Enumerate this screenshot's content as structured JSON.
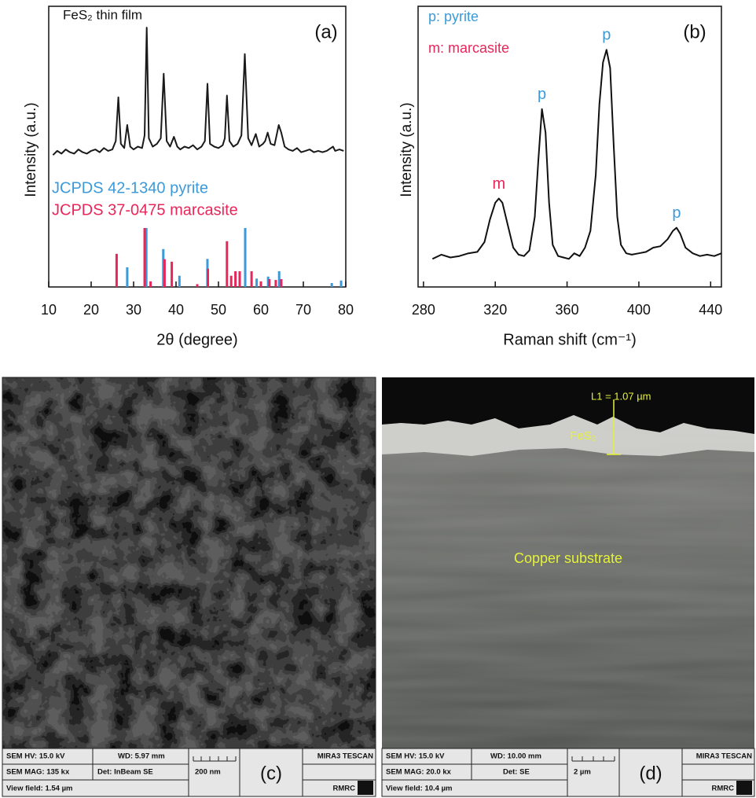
{
  "chart_data": [
    {
      "type": "line",
      "panel_label": "(a)",
      "annotation": "FeS₂ thin film",
      "x_label": "2θ (degree)",
      "y_label": "Intensity (a.u.)",
      "xlim": [
        10,
        80
      ],
      "ylim": [
        0,
        100
      ],
      "xticks": [
        10,
        20,
        30,
        40,
        50,
        60,
        70,
        80
      ],
      "series": [
        {
          "type": "line",
          "color": "#1a1a1a",
          "x": [
            11,
            12,
            13,
            14,
            15,
            16,
            17,
            18,
            19,
            20,
            21,
            22,
            23,
            24,
            25,
            25.8,
            26.4,
            27,
            27.8,
            28.5,
            29.2,
            30,
            31,
            32,
            32.6,
            33.1,
            33.6,
            34.5,
            35.5,
            36.4,
            37.1,
            37.8,
            38.6,
            39.5,
            40.3,
            41,
            42,
            43,
            44,
            45,
            46,
            46.8,
            47.4,
            48,
            49,
            50,
            51,
            51.5,
            52,
            52.6,
            53.5,
            54.5,
            55.4,
            56.2,
            57,
            57.8,
            58.8,
            59.6,
            60.5,
            61,
            61.6,
            62.3,
            63.2,
            64.2,
            64.8,
            65.6,
            66.5,
            67.5,
            68.5,
            69.5,
            70.5,
            71.5,
            72.5,
            73.5,
            74.5,
            75.5,
            76.5,
            77,
            77.5,
            78.5,
            79.5
          ],
          "values": [
            47,
            48.5,
            47.5,
            49,
            48,
            47.5,
            49,
            48,
            47.5,
            48.5,
            49,
            48,
            49.5,
            48.5,
            49,
            52,
            67.6,
            51,
            49.5,
            57.7,
            50,
            49,
            50,
            49.5,
            54,
            92.4,
            53,
            50,
            51,
            53,
            76,
            52,
            50,
            53.5,
            50,
            49,
            50,
            49.5,
            50.5,
            49,
            50,
            52,
            72.4,
            51,
            50,
            49.5,
            50.5,
            53,
            68.2,
            52,
            50,
            51,
            54,
            83,
            53,
            50.5,
            54.5,
            50,
            51,
            52,
            55,
            51,
            50.5,
            57.7,
            55,
            50,
            49,
            48.5,
            49.5,
            48,
            48.5,
            49,
            48,
            48.5,
            48,
            48.5,
            49.5,
            50,
            48.5,
            49,
            48.5
          ]
        },
        {
          "type": "stem",
          "name": "JCPDS 42-1340 pyrite",
          "color": "#3b9ad9",
          "x": [
            28.5,
            33,
            37,
            40.8,
            47.4,
            56.3,
            59,
            61.7,
            64.3,
            76.7,
            78.9
          ],
          "values": [
            7,
            21,
            13.5,
            4,
            10,
            21,
            3,
            3.7,
            5.6,
            1.4,
            2.3
          ]
        },
        {
          "type": "stem",
          "name": "JCPDS 37-0475  marcasite",
          "color": "#e8265a",
          "x": [
            26,
            32.6,
            34,
            37.3,
            39,
            45,
            47.5,
            52,
            53,
            54,
            55,
            57.8,
            60,
            62,
            63.5,
            64.8
          ],
          "values": [
            11.8,
            21,
            2,
            9.9,
            9,
            1,
            6.5,
            16.3,
            4,
            5.6,
            5.6,
            5.6,
            2,
            2.8,
            2.5,
            2.8
          ]
        }
      ]
    },
    {
      "type": "line",
      "panel_label": "(b)",
      "x_label": "Raman shift (cm⁻¹)",
      "y_label": "Intensity (a.u.)",
      "xlim": [
        277,
        446
      ],
      "ylim": [
        0,
        100
      ],
      "xticks": [
        280,
        320,
        360,
        400,
        440
      ],
      "legend_notes": [
        {
          "text": "p: pyrite",
          "color": "#3b9ad9"
        },
        {
          "text": "m: marcasite",
          "color": "#e8265a"
        }
      ],
      "annotations": [
        {
          "text": "m",
          "x": 322,
          "color": "#e8265a"
        },
        {
          "text": "p",
          "x": 346,
          "color": "#3b9ad9"
        },
        {
          "text": "p",
          "x": 382,
          "color": "#3b9ad9"
        },
        {
          "text": "p",
          "x": 421,
          "color": "#3b9ad9"
        }
      ],
      "series": [
        {
          "type": "line",
          "color": "#111111",
          "x": [
            285,
            290,
            295,
            300,
            305,
            310,
            314,
            317,
            320,
            322,
            324,
            327,
            330,
            333,
            336,
            339,
            342,
            344,
            346,
            348,
            350,
            352,
            355,
            358,
            361,
            364,
            367,
            370,
            373,
            376,
            378,
            380,
            382,
            384,
            386,
            388,
            390,
            393,
            396,
            400,
            404,
            408,
            412,
            416,
            419,
            421,
            423,
            426,
            430,
            434,
            438,
            442,
            446
          ],
          "values": [
            10,
            11.5,
            10.5,
            11,
            12,
            12.5,
            16,
            24,
            30,
            31.5,
            30,
            22,
            14,
            11.5,
            11,
            13,
            25,
            45,
            63.4,
            55,
            30,
            15,
            11,
            10.5,
            10,
            12,
            11,
            14,
            20,
            40,
            65,
            80,
            84.5,
            78,
            50,
            25,
            15,
            12,
            11.5,
            12,
            12.5,
            14,
            14.5,
            17,
            20,
            21.1,
            19,
            14,
            12,
            11,
            11.5,
            11,
            12
          ]
        }
      ]
    }
  ],
  "sem_images": [
    {
      "label": "(c)",
      "hv": "SEM HV: 15.0 kV",
      "wd": "WD: 5.97 mm",
      "brand": "MIRA3 TESCAN",
      "mag": "SEM MAG: 135 kx",
      "det": "Det: InBeam SE",
      "scale": "200 nm",
      "view_field": "View field: 1.54 µm",
      "lab": "RMRC"
    },
    {
      "label": "(d)",
      "hv": "SEM HV: 15.0 kV",
      "wd": "WD: 10.00 mm",
      "brand": "MIRA3 TESCAN",
      "mag": "SEM MAG: 20.0 kx",
      "det": "Det: SE",
      "scale": "2 µm",
      "view_field": "View field: 10.4 µm",
      "lab": "RMRC",
      "thickness": "L1 = 1.07 µm",
      "layer": "FeS₂",
      "substrate": "Copper substrate"
    }
  ]
}
